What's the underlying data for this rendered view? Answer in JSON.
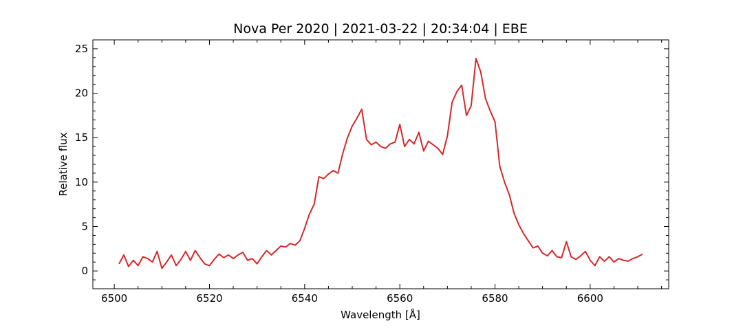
{
  "chart_data": {
    "type": "line",
    "title": "Nova Per 2020 | 2021-03-22 | 20:34:04 | EBE",
    "xlabel": "Wavelength [Å]",
    "ylabel": "Relative flux",
    "xlim": [
      6495.5,
      6616.5
    ],
    "ylim": [
      -2,
      26
    ],
    "xticks": [
      6500,
      6520,
      6540,
      6560,
      6580,
      6600
    ],
    "yticks": [
      0,
      5,
      10,
      15,
      20,
      25
    ],
    "grid": false,
    "legend": "none",
    "series": [
      {
        "color": "#d62728",
        "x": [
          6501,
          6502,
          6503,
          6504,
          6505,
          6506,
          6507,
          6508,
          6509,
          6510,
          6511,
          6512,
          6513,
          6514,
          6515,
          6516,
          6517,
          6518,
          6519,
          6520,
          6521,
          6522,
          6523,
          6524,
          6525,
          6526,
          6527,
          6528,
          6529,
          6530,
          6531,
          6532,
          6533,
          6534,
          6535,
          6536,
          6537,
          6538,
          6539,
          6540,
          6541,
          6542,
          6543,
          6544,
          6545,
          6546,
          6547,
          6548,
          6549,
          6550,
          6551,
          6552,
          6553,
          6554,
          6555,
          6556,
          6557,
          6558,
          6559,
          6560,
          6561,
          6562,
          6563,
          6564,
          6565,
          6566,
          6567,
          6568,
          6569,
          6570,
          6571,
          6572,
          6573,
          6574,
          6575,
          6576,
          6577,
          6578,
          6579,
          6580,
          6581,
          6582,
          6583,
          6584,
          6585,
          6586,
          6587,
          6588,
          6589,
          6590,
          6591,
          6592,
          6593,
          6594,
          6595,
          6596,
          6597,
          6598,
          6599,
          6600,
          6601,
          6602,
          6603,
          6604,
          6605,
          6606,
          6607,
          6608,
          6609,
          6610,
          6611
        ],
        "y": [
          0.8,
          1.8,
          0.5,
          1.2,
          0.6,
          1.6,
          1.4,
          1.0,
          2.2,
          0.3,
          1.0,
          1.8,
          0.6,
          1.3,
          2.2,
          1.2,
          2.3,
          1.5,
          0.8,
          0.6,
          1.3,
          1.9,
          1.5,
          1.8,
          1.4,
          1.8,
          2.1,
          1.2,
          1.4,
          0.8,
          1.6,
          2.3,
          1.8,
          2.3,
          2.8,
          2.7,
          3.1,
          2.9,
          3.4,
          4.8,
          6.4,
          7.5,
          10.6,
          10.4,
          10.9,
          11.3,
          11.0,
          13.2,
          15.0,
          16.3,
          17.2,
          18.2,
          14.8,
          14.2,
          14.5,
          14.0,
          13.8,
          14.3,
          14.5,
          16.5,
          14.0,
          14.8,
          14.3,
          15.6,
          13.5,
          14.6,
          14.2,
          13.8,
          13.1,
          15.2,
          19.0,
          20.2,
          20.9,
          17.5,
          18.6,
          23.9,
          22.4,
          19.4,
          18.0,
          16.8,
          11.8,
          10.0,
          8.6,
          6.5,
          5.2,
          4.2,
          3.4,
          2.6,
          2.8,
          2.0,
          1.7,
          2.3,
          1.6,
          1.5,
          3.3,
          1.6,
          1.3,
          1.7,
          2.2,
          1.2,
          0.6,
          1.6,
          1.1,
          1.6,
          1.0,
          1.4,
          1.2,
          1.1,
          1.4,
          1.6,
          1.9
        ]
      }
    ]
  }
}
